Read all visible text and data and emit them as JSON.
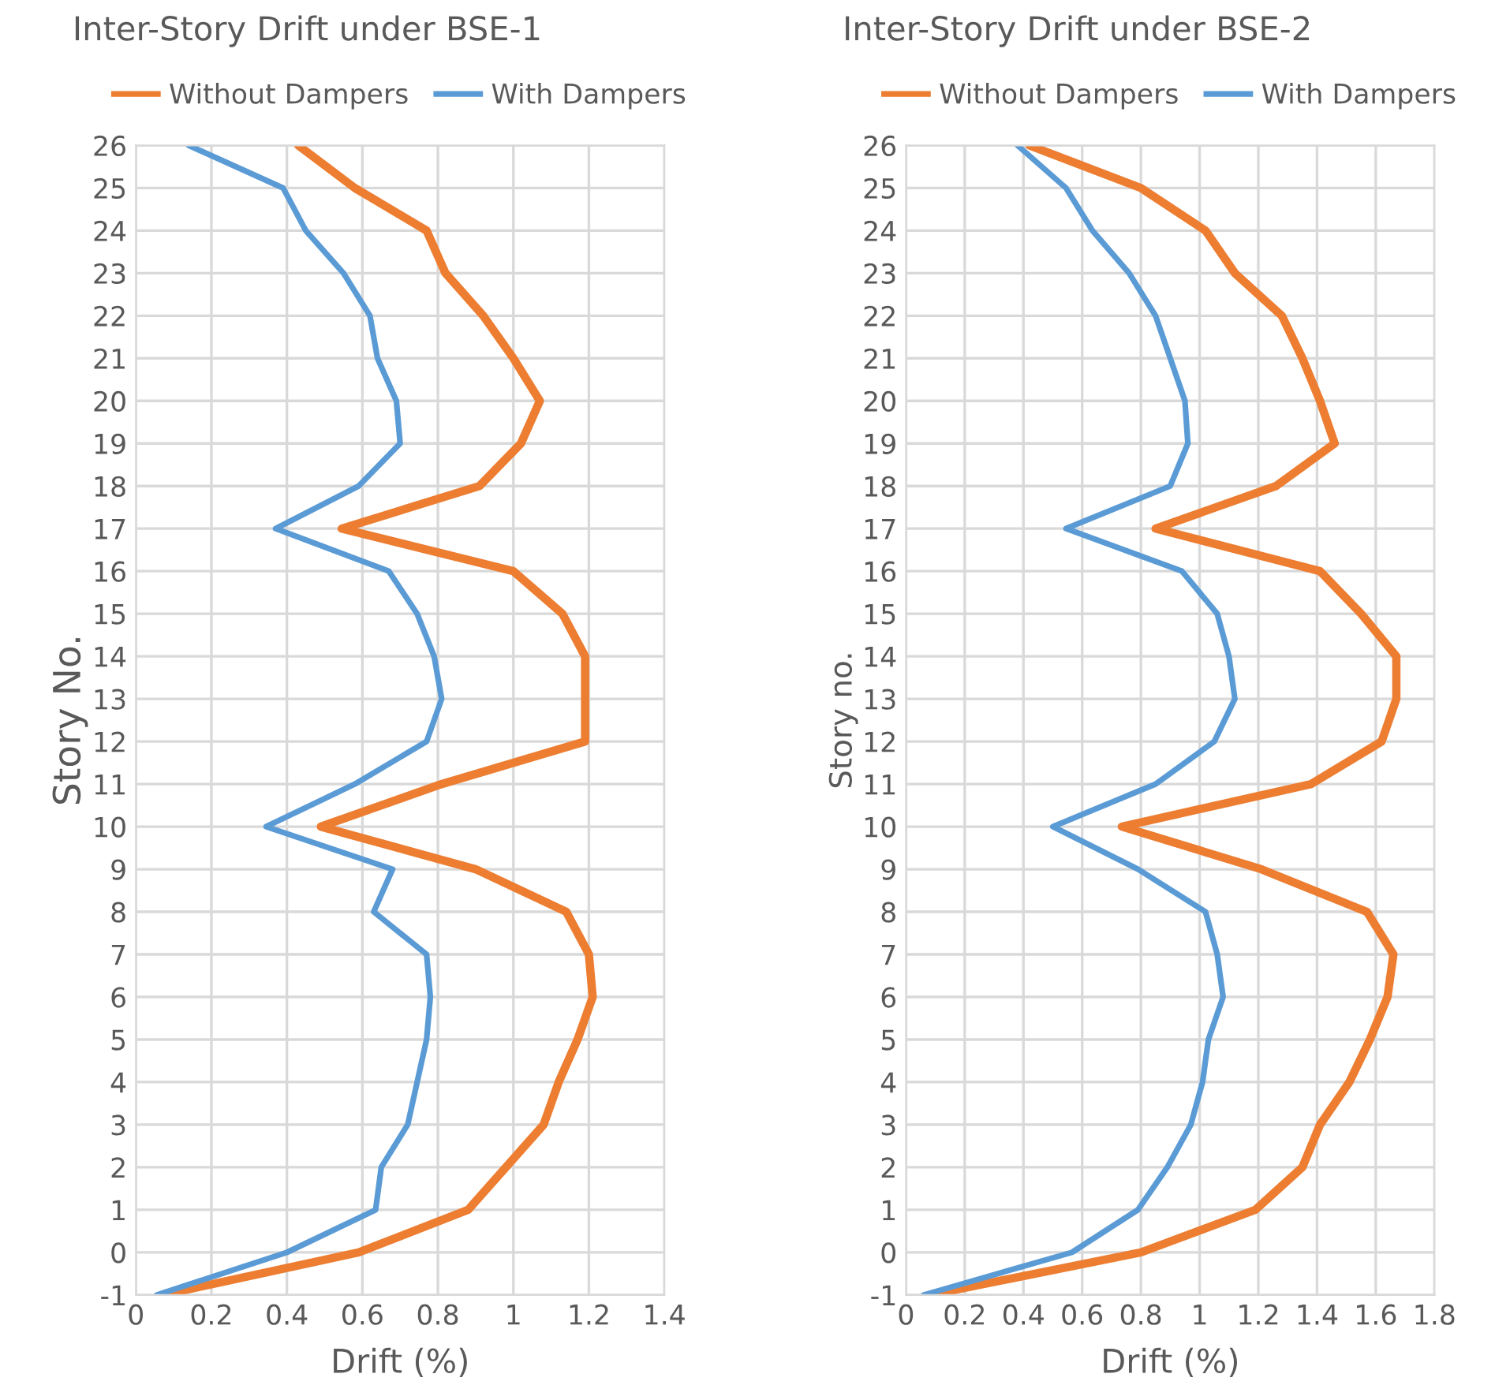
{
  "chart_data": [
    {
      "type": "line",
      "title": "Inter-Story Drift under BSE-1",
      "xlabel": "Drift (%)",
      "ylabel": "Story No.",
      "series": [
        {
          "name": "Without Dampers",
          "color": "#ed7d31",
          "x": [
            0.07,
            0.59,
            0.88,
            0.98,
            1.08,
            1.12,
            1.17,
            1.21,
            1.2,
            1.14,
            0.9,
            0.49,
            0.81,
            1.19,
            1.19,
            1.19,
            1.13,
            1.0,
            0.545,
            0.91,
            1.02,
            1.07,
            1.0,
            0.92,
            0.82,
            0.77,
            0.58,
            0.43
          ],
          "values": [
            -1,
            0,
            1,
            2,
            3,
            4,
            5,
            6,
            7,
            8,
            9,
            10,
            11,
            12,
            13,
            14,
            15,
            16,
            17,
            18,
            19,
            20,
            21,
            22,
            23,
            24,
            25,
            26
          ]
        },
        {
          "name": "With Dampers",
          "color": "#5b9bd5",
          "x": [
            0.055,
            0.4,
            0.635,
            0.65,
            0.72,
            0.745,
            0.77,
            0.78,
            0.77,
            0.63,
            0.68,
            0.345,
            0.58,
            0.77,
            0.81,
            0.79,
            0.745,
            0.67,
            0.37,
            0.59,
            0.7,
            0.69,
            0.64,
            0.62,
            0.55,
            0.45,
            0.39,
            0.14
          ],
          "values": [
            -1,
            0,
            1,
            2,
            3,
            4,
            5,
            6,
            7,
            8,
            9,
            10,
            11,
            12,
            13,
            14,
            15,
            16,
            17,
            18,
            19,
            20,
            21,
            22,
            23,
            24,
            25,
            26
          ]
        }
      ],
      "xlim": [
        0,
        1.4
      ],
      "xticks": [
        0,
        0.2,
        0.4,
        0.6,
        0.8,
        1,
        1.2,
        1.4
      ],
      "ylim": [
        -1,
        26
      ],
      "yticks": [
        -1,
        0,
        1,
        2,
        3,
        4,
        5,
        6,
        7,
        8,
        9,
        10,
        11,
        12,
        13,
        14,
        15,
        16,
        17,
        18,
        19,
        20,
        21,
        22,
        23,
        24,
        25,
        26
      ],
      "grid": true,
      "legend": "top"
    },
    {
      "type": "line",
      "title": "Inter-Story Drift under BSE-2",
      "xlabel": "Drift (%)",
      "ylabel": "Story no.",
      "series": [
        {
          "name": "Without Dampers",
          "color": "#ed7d31",
          "x": [
            0.08,
            0.8,
            1.19,
            1.35,
            1.41,
            1.51,
            1.58,
            1.64,
            1.66,
            1.57,
            1.21,
            0.735,
            1.38,
            1.62,
            1.67,
            1.67,
            1.55,
            1.41,
            0.85,
            1.26,
            1.46,
            1.41,
            1.35,
            1.28,
            1.12,
            1.02,
            0.8,
            0.42
          ],
          "values": [
            -1,
            0,
            1,
            2,
            3,
            4,
            5,
            6,
            7,
            8,
            9,
            10,
            11,
            12,
            13,
            14,
            15,
            16,
            17,
            18,
            19,
            20,
            21,
            22,
            23,
            24,
            25,
            26
          ]
        },
        {
          "name": "With Dampers",
          "color": "#5b9bd5",
          "x": [
            0.06,
            0.565,
            0.79,
            0.89,
            0.97,
            1.01,
            1.03,
            1.08,
            1.06,
            1.02,
            0.79,
            0.5,
            0.85,
            1.05,
            1.12,
            1.1,
            1.06,
            0.94,
            0.545,
            0.9,
            0.96,
            0.95,
            0.9,
            0.85,
            0.76,
            0.635,
            0.545,
            0.38
          ],
          "values": [
            -1,
            0,
            1,
            2,
            3,
            4,
            5,
            6,
            7,
            8,
            9,
            10,
            11,
            12,
            13,
            14,
            15,
            16,
            17,
            18,
            19,
            20,
            21,
            22,
            23,
            24,
            25,
            26
          ]
        }
      ],
      "xlim": [
        0,
        1.8
      ],
      "xticks": [
        0,
        0.2,
        0.4,
        0.6,
        0.8,
        1,
        1.2,
        1.4,
        1.6,
        1.8
      ],
      "ylim": [
        -1,
        26
      ],
      "yticks": [
        -1,
        0,
        1,
        2,
        3,
        4,
        5,
        6,
        7,
        8,
        9,
        10,
        11,
        12,
        13,
        14,
        15,
        16,
        17,
        18,
        19,
        20,
        21,
        22,
        23,
        24,
        25,
        26
      ],
      "grid": true,
      "legend": "top"
    }
  ]
}
